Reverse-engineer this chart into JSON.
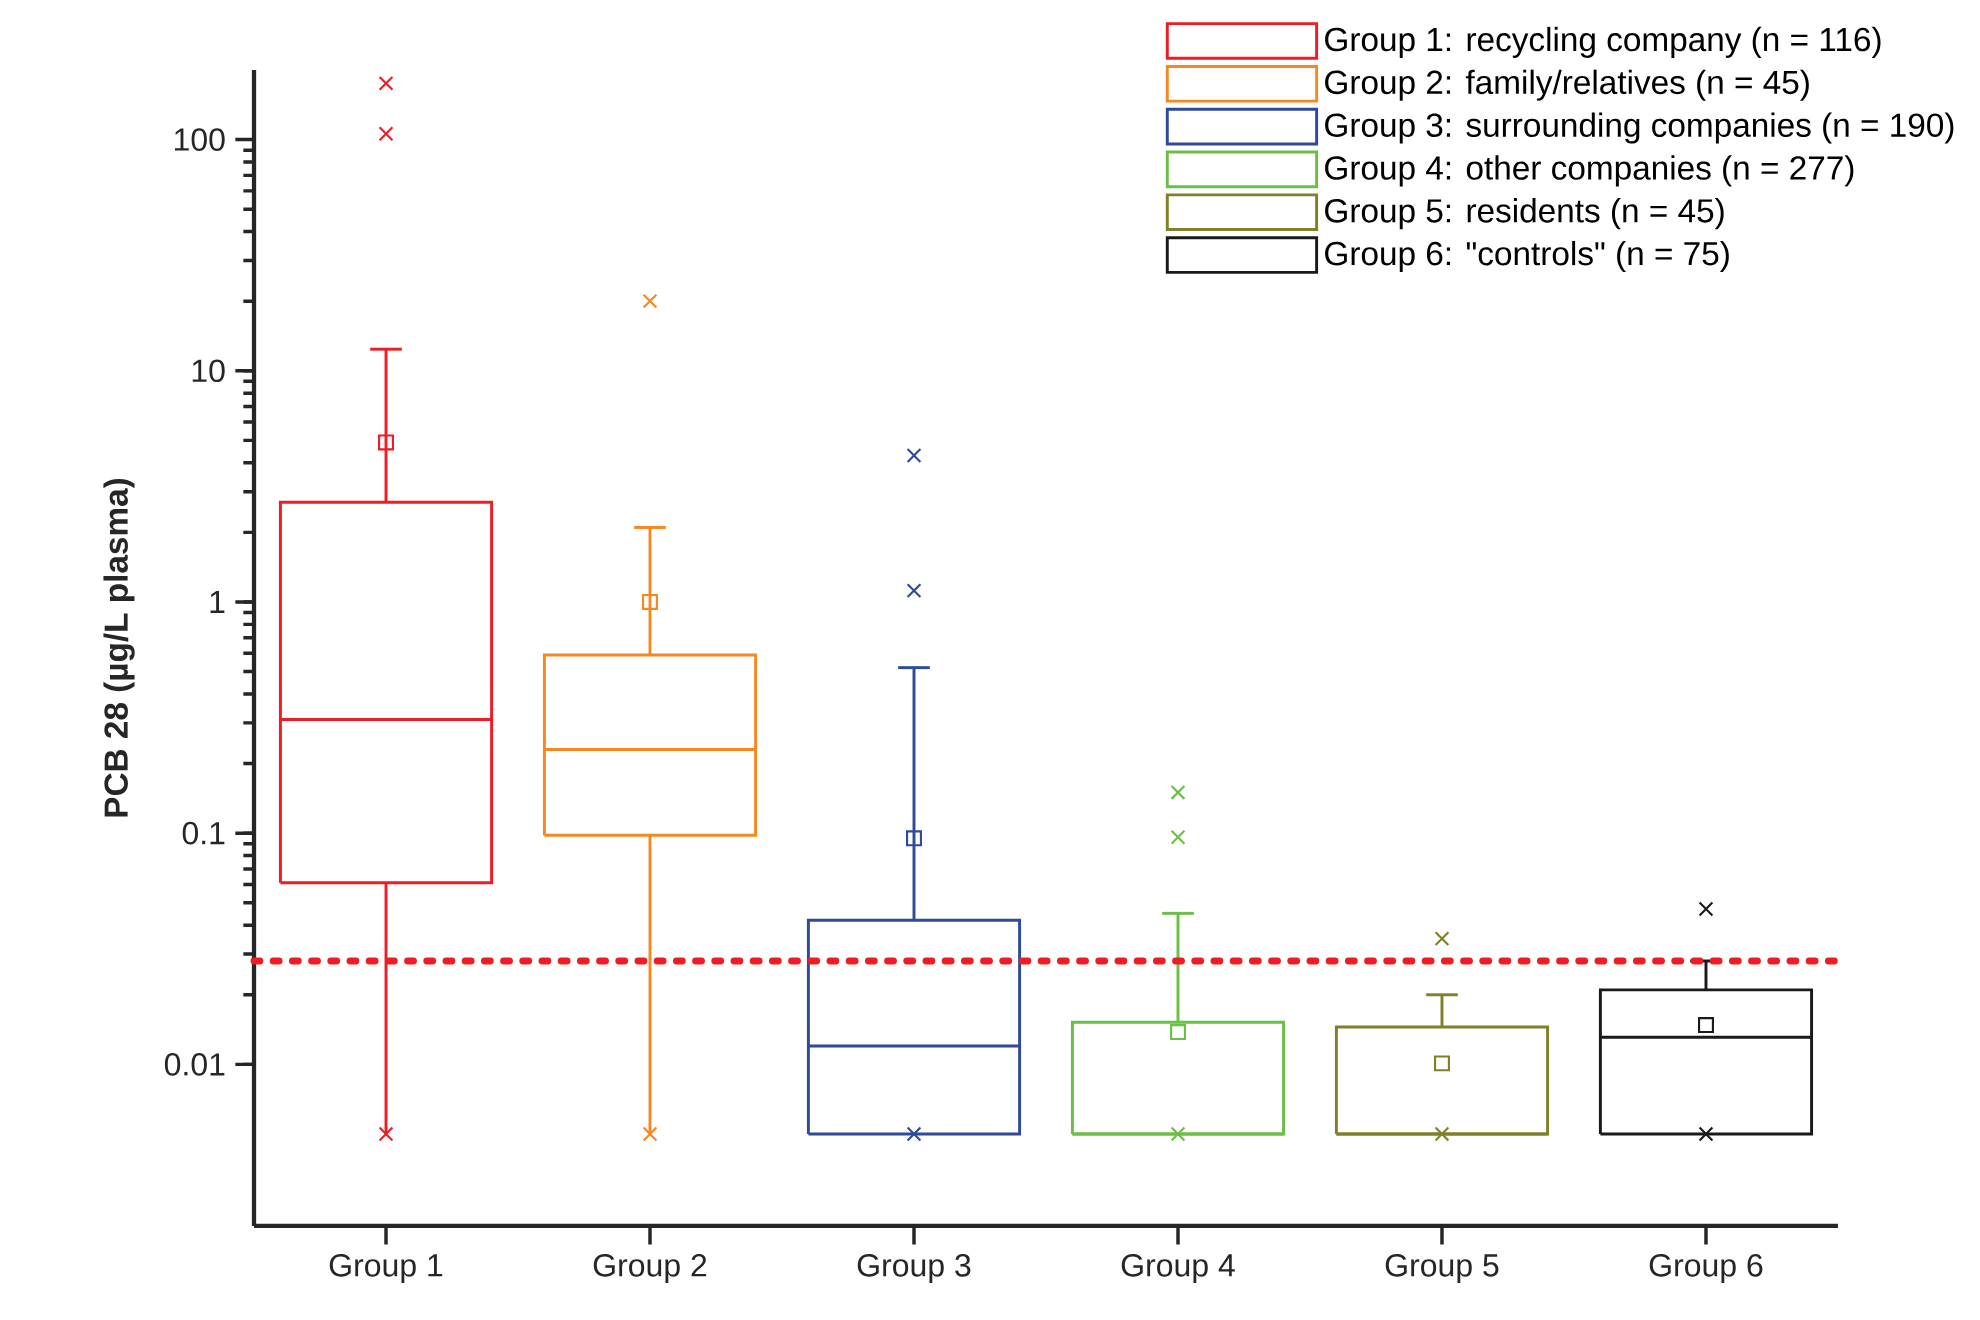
{
  "chart_data": {
    "type": "box",
    "ylabel": "**PCB 28 (µg/L plasma)**",
    "categories": [
      "Group 1",
      "Group 2",
      "Group 3",
      "Group 4",
      "Group 5",
      "Group 6"
    ],
    "log": "y",
    "ylim": [
      0.002,
      200
    ],
    "yticks": [
      0.01,
      0.1,
      1,
      10,
      100
    ],
    "legend": "top right",
    "ref_lines": [
      {
        "axis": "y",
        "value": 0.028,
        "color": "#ee1c25",
        "line_style": "dotted"
      }
    ],
    "series": [
      {
        "name": "Group 1: recycling company (n = 116)",
        "color": "#ee1c25",
        "boxes": [
          {
            "low": 0.005,
            "q1": 0.061,
            "median": 0.31,
            "q3": 2.7,
            "high": 12.4,
            "mean": 4.9,
            "outliers": [
              0.005,
              106,
              175
            ]
          },
          null,
          null,
          null,
          null,
          null
        ]
      },
      {
        "name": "Group 2: family/relatives (n = 45)",
        "color": "#f7881f",
        "boxes": [
          null,
          {
            "low": 0.005,
            "q1": 0.098,
            "median": 0.23,
            "q3": 0.59,
            "high": 2.1,
            "mean": 1.0,
            "outliers": [
              0.005,
              20
            ]
          },
          null,
          null,
          null,
          null
        ]
      },
      {
        "name": "Group 3: surrounding companies (n = 190)",
        "color": "#2e4b9b",
        "boxes": [
          null,
          null,
          {
            "low": 0.005,
            "q1": 0.005,
            "median": 0.012,
            "q3": 0.042,
            "high": 0.52,
            "mean": 0.095,
            "outliers": [
              0.005,
              1.12,
              4.3
            ]
          },
          null,
          null,
          null
        ]
      },
      {
        "name": "Group 4: other companies (n = 277)",
        "color": "#6abf45",
        "boxes": [
          null,
          null,
          null,
          {
            "low": 0.005,
            "q1": 0.005,
            "median": 0.005,
            "q3": 0.0152,
            "high": 0.045,
            "mean": 0.0138,
            "outliers": [
              0.005,
              0.096,
              0.15
            ]
          },
          null,
          null
        ]
      },
      {
        "name": "Group 5: residents (n = 45)",
        "color": "#808026",
        "boxes": [
          null,
          null,
          null,
          null,
          {
            "low": 0.005,
            "q1": 0.005,
            "median": 0.005,
            "q3": 0.0145,
            "high": 0.02,
            "mean": 0.0101,
            "outliers": [
              0.005,
              0.035
            ]
          },
          null
        ]
      },
      {
        "name": "Group 6: \"controls\" (n = 75)",
        "color": "#1a1a1a",
        "boxes": [
          null,
          null,
          null,
          null,
          null,
          {
            "low": 0.005,
            "q1": 0.005,
            "median": 0.0131,
            "q3": 0.021,
            "high": 0.028,
            "mean": 0.0148,
            "outliers": [
              0.005,
              0.047
            ]
          }
        ]
      }
    ]
  }
}
